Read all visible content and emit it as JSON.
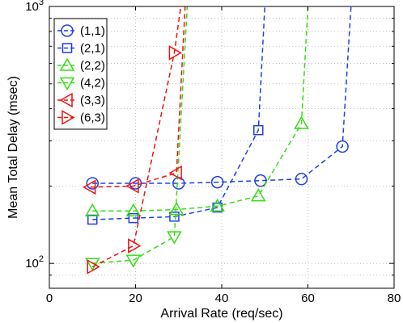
{
  "chart_data": {
    "type": "line",
    "xlabel": "Arrival Rate (req/sec)",
    "ylabel": "Mean Total Delay (msec)",
    "xlim": [
      0,
      80
    ],
    "ylim": [
      80,
      1000
    ],
    "yscale": "log",
    "xticks": [
      "0",
      "20",
      "40",
      "60",
      "80"
    ],
    "grid": true,
    "legend_position": "top-left",
    "series": [
      {
        "name": "(1,1)",
        "color": "#1f3fe0",
        "marker": "circle",
        "x": [
          10,
          20,
          30,
          39,
          49,
          58.5,
          68,
          70
        ],
        "y": [
          205,
          205,
          205,
          207,
          210,
          213,
          285,
          1000
        ]
      },
      {
        "name": "(2,1)",
        "color": "#1f3fe0",
        "marker": "square",
        "x": [
          10,
          19.5,
          29,
          39,
          48.5,
          50
        ],
        "y": [
          148,
          150,
          152,
          165,
          330,
          1000
        ]
      },
      {
        "name": "(2,2)",
        "color": "#33dd11",
        "marker": "triangle-up",
        "x": [
          10,
          19.5,
          29.5,
          39,
          48.5,
          58.5,
          60
        ],
        "y": [
          160,
          160,
          162,
          167,
          183,
          350,
          1000
        ]
      },
      {
        "name": "(4,2)",
        "color": "#33dd11",
        "marker": "triangle-down",
        "x": [
          10,
          19.5,
          29,
          32
        ],
        "y": [
          100,
          103,
          127,
          1000
        ]
      },
      {
        "name": "(3,3)",
        "color": "#ee1111",
        "marker": "triangle-left",
        "x": [
          9.5,
          19.5,
          29.5,
          31.5
        ],
        "y": [
          198,
          200,
          225,
          1000
        ]
      },
      {
        "name": "(6,3)",
        "color": "#ee1111",
        "marker": "triangle-right",
        "x": [
          10,
          19.5,
          29,
          30.5
        ],
        "y": [
          97,
          117,
          660,
          1000
        ]
      }
    ]
  }
}
